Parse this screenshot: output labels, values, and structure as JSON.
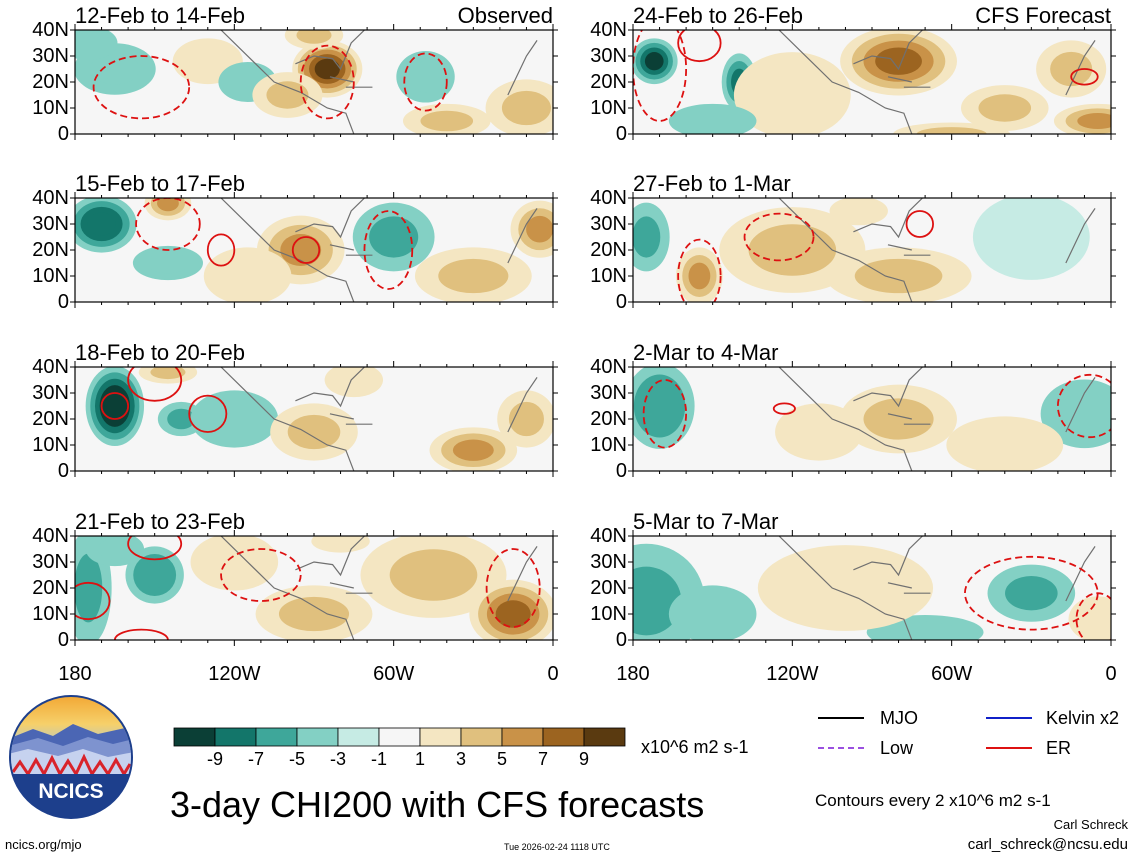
{
  "footer_left": "ncics.org/mjo",
  "timestamp": "Tue 2026-02-24 1118 UTC",
  "main_title": "3-day CHI200 with CFS forecasts",
  "contour_note": "Contours every 2 x10^6 m2 s-1",
  "author": "Carl Schreck",
  "email": "carl_schreck@ncsu.edu",
  "logo_text": "NCICS",
  "units": "x10^6 m2 s-1",
  "legend": [
    {
      "label": "MJO",
      "color": "#000000"
    },
    {
      "label": "Kelvin x2",
      "color": "#1020c8"
    },
    {
      "label": "Low",
      "color": "#9a50e0"
    },
    {
      "label": "ER",
      "color": "#dd1111"
    }
  ],
  "colors": {
    "scale": [
      "#0b3f36",
      "#13766a",
      "#3ea79a",
      "#83d0c4",
      "#c6ebe4",
      "#f6f6f6",
      "#f4e6c2",
      "#e0c07e",
      "#c99248",
      "#9c6420",
      "#5a3a10"
    ],
    "contour": "#dd1111"
  },
  "chart_data": {
    "type": "heatmap",
    "title": "3-day CHI200 with CFS forecasts",
    "units": "x10^6 m2 s-1",
    "colorbar_ticks": [
      "-9",
      "-7",
      "-5",
      "-3",
      "-1",
      "1",
      "3",
      "5",
      "7",
      "9"
    ],
    "x_ticks": [
      "180",
      "120W",
      "60W",
      "0"
    ],
    "y_ticks": [
      "40N",
      "30N",
      "20N",
      "10N",
      "0"
    ],
    "xlim": [
      -180,
      0
    ],
    "ylim": [
      0,
      40
    ],
    "columns": [
      "Observed",
      "CFS Forecast"
    ],
    "panels": [
      {
        "label": "12-Feb to 14-Feb",
        "header": "Observed",
        "fields": [
          [
            -165,
            25,
            14,
            9,
            -3
          ],
          [
            -130,
            28,
            12,
            8,
            2
          ],
          [
            -115,
            20,
            10,
            7,
            -2
          ],
          [
            -85,
            25,
            12,
            10,
            9
          ],
          [
            -100,
            15,
            12,
            8,
            3
          ],
          [
            -48,
            22,
            10,
            9,
            -3
          ],
          [
            -90,
            38,
            10,
            5,
            3
          ],
          [
            -40,
            5,
            15,
            6,
            4
          ],
          [
            -10,
            10,
            14,
            10,
            4
          ],
          [
            -175,
            35,
            10,
            6,
            -2
          ]
        ],
        "contours": [
          [
            -155,
            18,
            18,
            12
          ],
          [
            -85,
            20,
            10,
            14
          ],
          [
            -48,
            20,
            8,
            11
          ]
        ]
      },
      {
        "label": "24-Feb to 26-Feb",
        "header": "CFS Forecast",
        "fields": [
          [
            -172,
            28,
            8,
            8,
            -8
          ],
          [
            -140,
            20,
            6,
            10,
            -6
          ],
          [
            -80,
            28,
            20,
            12,
            8
          ],
          [
            -120,
            15,
            20,
            15,
            2
          ],
          [
            -40,
            10,
            15,
            8,
            4
          ],
          [
            -5,
            5,
            15,
            6,
            5
          ],
          [
            -15,
            25,
            12,
            10,
            3
          ],
          [
            -60,
            0,
            20,
            4,
            3
          ],
          [
            -150,
            5,
            15,
            6,
            -2
          ]
        ],
        "contours": [
          [
            -170,
            25,
            10,
            20
          ],
          [
            -155,
            35,
            8,
            7
          ],
          [
            -10,
            22,
            5,
            3
          ]
        ]
      },
      {
        "label": "15-Feb to 17-Feb",
        "header": "",
        "fields": [
          [
            -170,
            30,
            12,
            10,
            -7
          ],
          [
            -145,
            38,
            8,
            6,
            5
          ],
          [
            -95,
            20,
            15,
            12,
            5
          ],
          [
            -145,
            15,
            12,
            6,
            -3
          ],
          [
            -60,
            25,
            14,
            12,
            -4
          ],
          [
            -115,
            10,
            15,
            10,
            2
          ],
          [
            -30,
            10,
            20,
            10,
            4
          ],
          [
            -5,
            28,
            10,
            10,
            5
          ]
        ],
        "contours": [
          [
            -145,
            30,
            12,
            10
          ],
          [
            -125,
            20,
            5,
            6
          ],
          [
            -93,
            20,
            5,
            5
          ],
          [
            -62,
            20,
            9,
            15
          ]
        ]
      },
      {
        "label": "27-Feb to 1-Mar",
        "header": "",
        "fields": [
          [
            -175,
            25,
            8,
            12,
            -4
          ],
          [
            -155,
            10,
            8,
            10,
            5
          ],
          [
            -120,
            20,
            25,
            15,
            3
          ],
          [
            -80,
            10,
            25,
            10,
            4
          ],
          [
            -30,
            25,
            20,
            15,
            -1
          ],
          [
            -95,
            35,
            10,
            5,
            2
          ]
        ],
        "contours": [
          [
            -155,
            10,
            8,
            14
          ],
          [
            -125,
            25,
            13,
            9
          ],
          [
            -72,
            30,
            5,
            5
          ]
        ]
      },
      {
        "label": "18-Feb to 20-Feb",
        "header": "",
        "fields": [
          [
            -165,
            25,
            10,
            14,
            -10
          ],
          [
            -140,
            20,
            8,
            6,
            -4
          ],
          [
            -120,
            20,
            15,
            10,
            -2
          ],
          [
            -90,
            15,
            15,
            10,
            3
          ],
          [
            -30,
            8,
            15,
            8,
            6
          ],
          [
            -75,
            35,
            10,
            6,
            2
          ],
          [
            -10,
            20,
            10,
            10,
            3
          ],
          [
            -145,
            38,
            10,
            4,
            3
          ]
        ],
        "contours": [
          [
            -165,
            25,
            5,
            5
          ],
          [
            -130,
            22,
            7,
            7
          ],
          [
            -150,
            35,
            10,
            8
          ]
        ]
      },
      {
        "label": "2-Mar to 4-Mar",
        "header": "",
        "fields": [
          [
            -170,
            25,
            12,
            15,
            -5
          ],
          [
            -80,
            20,
            20,
            12,
            3
          ],
          [
            -110,
            15,
            15,
            10,
            2
          ],
          [
            -10,
            22,
            15,
            12,
            -3
          ],
          [
            -40,
            10,
            20,
            10,
            2
          ]
        ],
        "contours": [
          [
            -168,
            22,
            8,
            13
          ],
          [
            -123,
            24,
            4,
            2
          ],
          [
            -8,
            25,
            12,
            12
          ]
        ]
      },
      {
        "label": "21-Feb to 23-Feb",
        "header": "",
        "fields": [
          [
            -175,
            20,
            8,
            20,
            -4
          ],
          [
            -150,
            25,
            10,
            10,
            -5
          ],
          [
            -165,
            35,
            10,
            6,
            -3
          ],
          [
            -45,
            25,
            25,
            15,
            4
          ],
          [
            -15,
            10,
            15,
            12,
            7
          ],
          [
            -90,
            10,
            20,
            10,
            3
          ],
          [
            -120,
            30,
            15,
            10,
            2
          ],
          [
            -80,
            38,
            10,
            4,
            2
          ]
        ],
        "contours": [
          [
            -175,
            15,
            8,
            7
          ],
          [
            -150,
            37,
            10,
            6
          ],
          [
            -110,
            25,
            15,
            10
          ],
          [
            -15,
            20,
            10,
            15
          ],
          [
            -155,
            0,
            10,
            4
          ]
        ]
      },
      {
        "label": "5-Mar to 7-Mar",
        "header": "",
        "fields": [
          [
            -175,
            15,
            20,
            20,
            -4
          ],
          [
            -150,
            10,
            15,
            10,
            -2
          ],
          [
            -30,
            18,
            15,
            10,
            -4
          ],
          [
            -70,
            3,
            20,
            6,
            -3
          ],
          [
            -100,
            20,
            30,
            15,
            1
          ],
          [
            -5,
            8,
            10,
            8,
            2
          ]
        ],
        "contours": [
          [
            -30,
            18,
            25,
            14
          ],
          [
            -5,
            8,
            8,
            10
          ]
        ]
      }
    ]
  }
}
